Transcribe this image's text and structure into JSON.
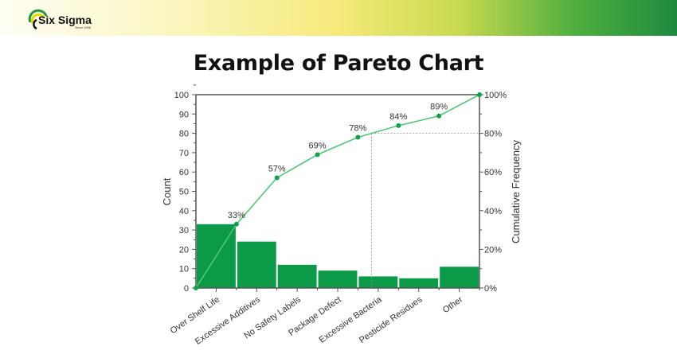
{
  "header": {
    "logo_text": "Six Sigma",
    "logo_subtext": "Since 1998"
  },
  "page_title": "Example of Pareto Chart",
  "colors": {
    "bar": "#0a9a48",
    "line": "#4cc878",
    "point": "#12a04c",
    "axis": "#555555"
  },
  "chart_data": {
    "type": "bar",
    "categories": [
      "Over Shelf Life",
      "Excessive Additives",
      "No Safety Labels",
      "Package Defect",
      "Excessive Bacteria",
      "Pesticide Residues",
      "Other"
    ],
    "values": [
      33,
      24,
      12,
      9,
      6,
      5,
      11
    ],
    "ylabel": "Count",
    "ylim": [
      0,
      100
    ],
    "yticks": [
      "0",
      "10",
      "20",
      "30",
      "40",
      "50",
      "60",
      "70",
      "80",
      "90",
      "100"
    ],
    "y2label": "Cumulative Frequency",
    "y2lim": [
      0,
      100
    ],
    "y2ticks": [
      "0%",
      "20%",
      "40%",
      "60%",
      "80%",
      "100%"
    ],
    "cumulative": {
      "values": [
        0,
        33,
        57,
        69,
        78,
        84,
        89,
        100
      ],
      "labels": [
        "",
        "33%",
        "57%",
        "69%",
        "78%",
        "84%",
        "89%",
        "100%"
      ]
    },
    "reference": {
      "cumulative_threshold": 80
    },
    "grid": false
  }
}
